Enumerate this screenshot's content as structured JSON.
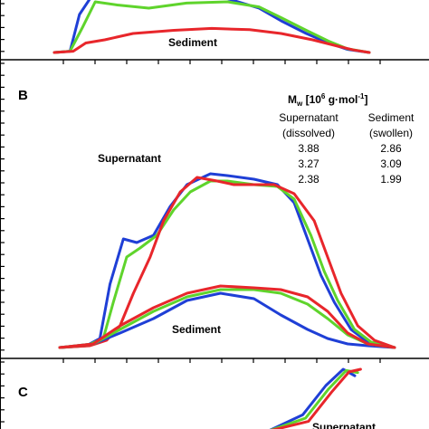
{
  "panels": [
    {
      "letter": "",
      "labels": {
        "sediment": "Sediment"
      }
    },
    {
      "letter": "B",
      "labels": {
        "supernatant": "Supernatant",
        "sediment": "Sediment"
      },
      "table": {
        "header": {
          "prefix": "M",
          "sub": "w",
          "bracket_open": " [10",
          "exp": "6",
          "unit_mid": " g·mol",
          "unit_exp": "-1",
          "bracket_close": "]"
        },
        "col1_title": "Supernatant",
        "col1_sub": "(dissolved)",
        "col2_title": "Sediment",
        "col2_sub": "(swollen)",
        "rows": [
          {
            "supernatant": "3.88",
            "sediment": "2.86"
          },
          {
            "supernatant": "3.27",
            "sediment": "3.09"
          },
          {
            "supernatant": "2.38",
            "sediment": "1.99"
          }
        ]
      }
    },
    {
      "letter": "C",
      "labels": {
        "supernatant": "Supernatant"
      }
    }
  ],
  "colors": {
    "blue": "#1f3fd6",
    "green": "#5fd42c",
    "red": "#e8262b",
    "axis": "#000000"
  },
  "chart_data": [
    {
      "type": "line",
      "panel": "A",
      "series": [
        {
          "color": "blue",
          "x": [
            0.0,
            0.05,
            0.08,
            0.12,
            0.2,
            0.3,
            0.42,
            0.55,
            0.65,
            0.72,
            0.8,
            0.87,
            0.93,
            1.0
          ],
          "y": [
            0.0,
            0.02,
            0.6,
            0.9,
            0.88,
            0.86,
            0.9,
            0.85,
            0.7,
            0.5,
            0.3,
            0.15,
            0.05,
            0.0
          ]
        },
        {
          "color": "green",
          "x": [
            0.0,
            0.05,
            0.09,
            0.13,
            0.2,
            0.3,
            0.42,
            0.55,
            0.65,
            0.72,
            0.8,
            0.87,
            0.93,
            1.0
          ],
          "y": [
            0.0,
            0.02,
            0.4,
            0.8,
            0.75,
            0.7,
            0.78,
            0.8,
            0.72,
            0.55,
            0.35,
            0.18,
            0.06,
            0.0
          ]
        },
        {
          "color": "red",
          "x": [
            0.0,
            0.06,
            0.1,
            0.16,
            0.25,
            0.38,
            0.5,
            0.62,
            0.72,
            0.82,
            0.9,
            0.95,
            1.0
          ],
          "y": [
            0.0,
            0.02,
            0.15,
            0.2,
            0.3,
            0.35,
            0.38,
            0.36,
            0.3,
            0.2,
            0.1,
            0.04,
            0.0
          ]
        }
      ]
    },
    {
      "type": "line",
      "panel": "B",
      "series": [
        {
          "color": "blue",
          "x": [
            0.0,
            0.08,
            0.12,
            0.15,
            0.19,
            0.23,
            0.28,
            0.33,
            0.38,
            0.45,
            0.5,
            0.58,
            0.65,
            0.7,
            0.74,
            0.78,
            0.82,
            0.87,
            0.92,
            1.0
          ],
          "y": [
            0.0,
            0.01,
            0.05,
            0.35,
            0.6,
            0.58,
            0.62,
            0.78,
            0.9,
            0.96,
            0.95,
            0.93,
            0.9,
            0.8,
            0.6,
            0.4,
            0.25,
            0.1,
            0.03,
            0.0
          ]
        },
        {
          "color": "green",
          "x": [
            0.0,
            0.08,
            0.13,
            0.16,
            0.2,
            0.24,
            0.29,
            0.34,
            0.39,
            0.45,
            0.5,
            0.58,
            0.65,
            0.7,
            0.75,
            0.79,
            0.83,
            0.88,
            0.93,
            1.0
          ],
          "y": [
            0.0,
            0.01,
            0.05,
            0.25,
            0.5,
            0.55,
            0.62,
            0.76,
            0.86,
            0.92,
            0.92,
            0.9,
            0.89,
            0.82,
            0.62,
            0.42,
            0.26,
            0.1,
            0.03,
            0.0
          ]
        },
        {
          "color": "red",
          "x": [
            0.0,
            0.09,
            0.14,
            0.18,
            0.22,
            0.27,
            0.31,
            0.36,
            0.41,
            0.47,
            0.52,
            0.58,
            0.64,
            0.7,
            0.76,
            0.8,
            0.84,
            0.89,
            0.94,
            1.0
          ],
          "y": [
            0.0,
            0.01,
            0.04,
            0.12,
            0.3,
            0.5,
            0.7,
            0.86,
            0.94,
            0.92,
            0.9,
            0.9,
            0.9,
            0.85,
            0.7,
            0.5,
            0.3,
            0.12,
            0.04,
            0.0
          ]
        },
        {
          "color": "blue",
          "x": [
            0.0,
            0.1,
            0.18,
            0.28,
            0.38,
            0.48,
            0.58,
            0.66,
            0.74,
            0.8,
            0.86,
            0.92,
            1.0
          ],
          "y": [
            0.0,
            0.02,
            0.08,
            0.16,
            0.26,
            0.3,
            0.27,
            0.18,
            0.1,
            0.05,
            0.02,
            0.01,
            0.0
          ]
        },
        {
          "color": "green",
          "x": [
            0.0,
            0.1,
            0.18,
            0.28,
            0.38,
            0.48,
            0.58,
            0.66,
            0.74,
            0.8,
            0.86,
            0.92,
            1.0
          ],
          "y": [
            0.0,
            0.02,
            0.1,
            0.2,
            0.28,
            0.32,
            0.32,
            0.3,
            0.24,
            0.16,
            0.07,
            0.02,
            0.0
          ]
        },
        {
          "color": "red",
          "x": [
            0.0,
            0.1,
            0.18,
            0.28,
            0.38,
            0.48,
            0.58,
            0.66,
            0.74,
            0.8,
            0.86,
            0.92,
            1.0
          ],
          "y": [
            0.0,
            0.02,
            0.12,
            0.22,
            0.3,
            0.34,
            0.33,
            0.32,
            0.28,
            0.2,
            0.08,
            0.02,
            0.0
          ]
        }
      ]
    },
    {
      "type": "line",
      "panel": "C",
      "series": [
        {
          "color": "blue",
          "x": [
            0.0,
            0.3,
            0.42,
            0.5,
            0.56,
            0.6
          ],
          "y": [
            0.0,
            0.05,
            0.3,
            0.75,
            1.0,
            0.9
          ]
        },
        {
          "color": "green",
          "x": [
            0.0,
            0.3,
            0.43,
            0.51,
            0.57,
            0.61
          ],
          "y": [
            0.0,
            0.05,
            0.25,
            0.7,
            0.98,
            0.95
          ]
        },
        {
          "color": "red",
          "x": [
            0.0,
            0.3,
            0.44,
            0.52,
            0.58,
            0.62
          ],
          "y": [
            0.0,
            0.05,
            0.2,
            0.65,
            0.96,
            1.0
          ]
        }
      ]
    }
  ]
}
